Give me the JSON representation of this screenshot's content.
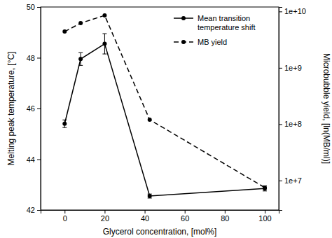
{
  "chart_data": {
    "type": "line",
    "x_label": "Glycerol concentration, [mol%]",
    "y_label": "Melting peak temperature, [°C]",
    "y2_label": "Microbubble yield, [ln(MB/ml)]",
    "x": [
      0,
      8,
      20,
      42.5,
      100
    ],
    "xlim": [
      -12,
      107
    ],
    "xticks": [
      0,
      20,
      40,
      60,
      80,
      100
    ],
    "ylim": [
      42,
      50
    ],
    "yticks": [
      42,
      44,
      46,
      48,
      50
    ],
    "y2lim": [
      3000000,
      12000000000
    ],
    "y2ticks": [
      {
        "value": 10000000,
        "label": "1e+7"
      },
      {
        "value": 100000000,
        "label": "1e+8"
      },
      {
        "value": 1000000000,
        "label": "1e+9"
      },
      {
        "value": 10000000000,
        "label": "1e+10"
      }
    ],
    "log": "y2",
    "legend": "upper right",
    "series": [
      {
        "name": "Mean transition temperature shift",
        "color": "#000000",
        "marker": "circle",
        "line_style": "solid",
        "values": [
          45.4,
          47.95,
          48.55,
          42.55,
          42.85
        ],
        "errors": [
          0.15,
          0.25,
          0.4,
          0.08,
          0.1
        ]
      },
      {
        "name": "MB yield",
        "color": "#000000",
        "marker": "circle",
        "line_style": "dashed",
        "axis": "y2",
        "values": [
          4400000000,
          6200000000,
          8500000000,
          120000000,
          7500000
        ]
      }
    ]
  }
}
